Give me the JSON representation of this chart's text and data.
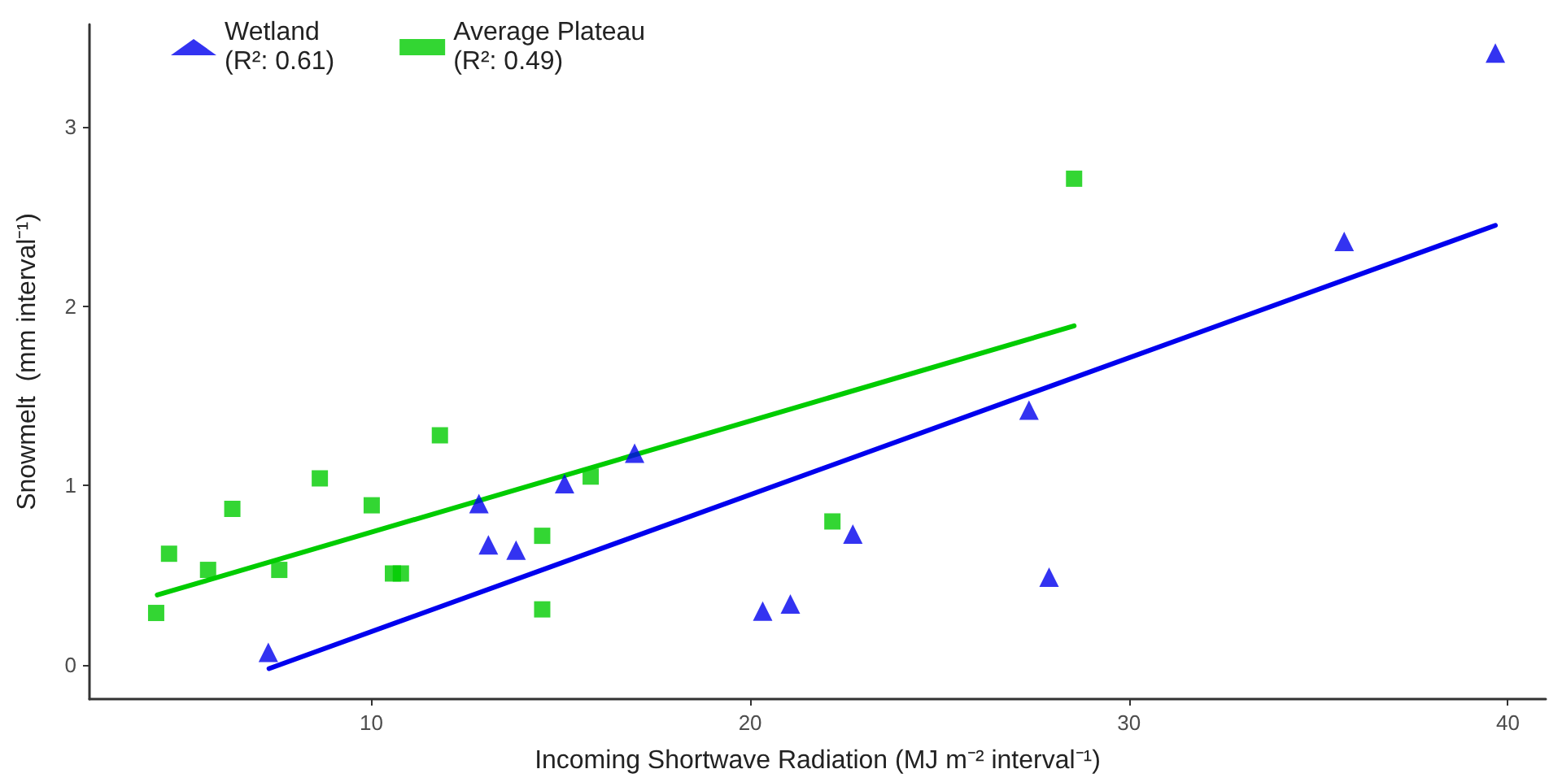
{
  "chart_data": {
    "type": "scatter",
    "xlabel": "Incoming Shortwave Radiation (MJ m⁻² interval⁻¹)",
    "ylabel": "Snowmelt  (mm interval⁻¹)",
    "xlim": [
      2.56,
      41.0
    ],
    "ylim": [
      -0.19,
      3.57
    ],
    "xticks": [
      10,
      20,
      30,
      40
    ],
    "yticks": [
      0,
      1,
      2,
      3
    ],
    "grid": false,
    "legend": "top left",
    "series": [
      {
        "name": "Wetland\n(R²: 0.61)",
        "color": "#0000ee",
        "marker": "triangle",
        "x": [
          7.28,
          12.84,
          13.09,
          13.82,
          15.1,
          16.95,
          20.33,
          21.06,
          22.71,
          27.36,
          27.89,
          35.68,
          39.67
        ],
        "values": [
          0.07,
          0.9,
          0.67,
          0.64,
          1.01,
          1.18,
          0.3,
          0.34,
          0.73,
          1.42,
          0.49,
          2.36,
          3.41
        ]
      },
      {
        "name": "Average Plateau\n(R²: 0.49)",
        "color": "#00cc00",
        "marker": "square",
        "x": [
          4.32,
          4.66,
          5.69,
          6.33,
          7.57,
          8.64,
          10.01,
          10.57,
          10.78,
          11.81,
          14.51,
          14.51,
          15.79,
          22.17,
          28.55
        ],
        "values": [
          0.29,
          0.62,
          0.53,
          0.87,
          0.53,
          1.04,
          0.89,
          0.51,
          0.51,
          1.28,
          0.72,
          0.31,
          1.05,
          0.8,
          2.71
        ]
      },
      {
        "type": "line",
        "color": "#0000ee",
        "marker": "none",
        "line_style": "solid",
        "x": [
          7.3,
          39.67
        ],
        "values": [
          -0.02,
          2.45
        ]
      },
      {
        "type": "line",
        "color": "#00cc00",
        "marker": "none",
        "line_style": "solid",
        "x": [
          4.35,
          28.55
        ],
        "values": [
          0.39,
          1.89
        ]
      }
    ]
  }
}
